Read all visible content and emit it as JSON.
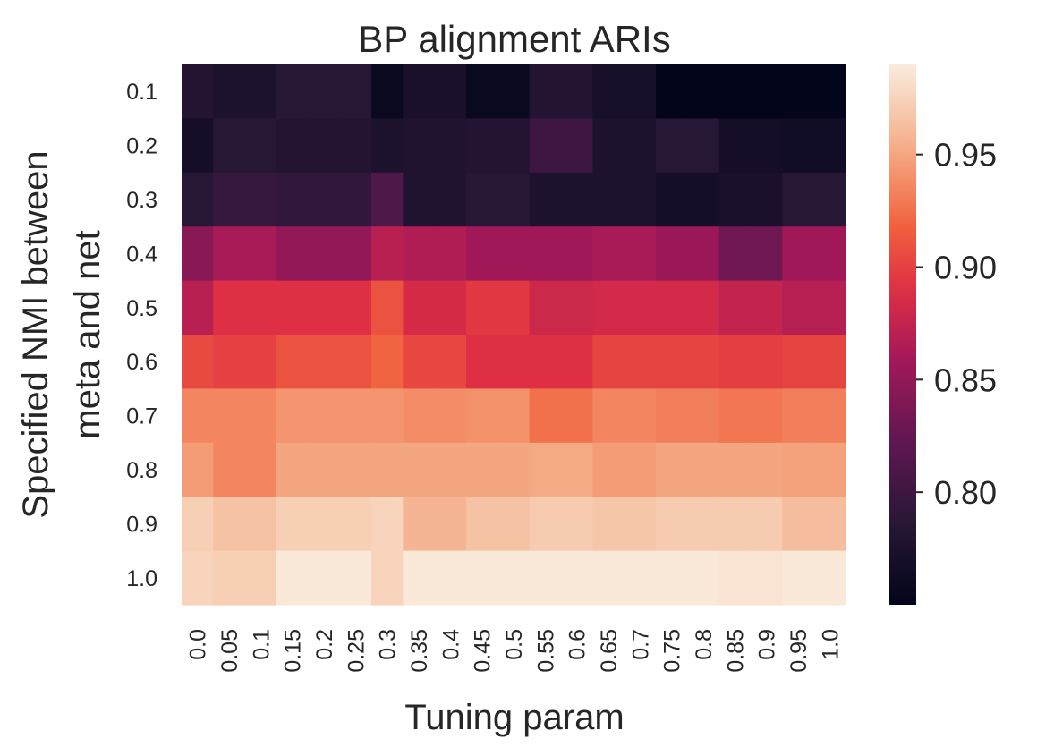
{
  "chart_data": {
    "type": "heatmap",
    "title": "BP alignment ARIs",
    "xlabel": "Tuning param",
    "ylabel_lines": [
      "Specified NMI between",
      "meta and net"
    ],
    "x_categories": [
      "0.0",
      "0.05",
      "0.1",
      "0.15",
      "0.2",
      "0.25",
      "0.3",
      "0.35",
      "0.4",
      "0.45",
      "0.5",
      "0.55",
      "0.6",
      "0.65",
      "0.7",
      "0.75",
      "0.8",
      "0.85",
      "0.9",
      "0.95",
      "1.0"
    ],
    "y_categories": [
      "0.1",
      "0.2",
      "0.3",
      "0.4",
      "0.5",
      "0.6",
      "0.7",
      "0.8",
      "0.9",
      "1.0"
    ],
    "values": [
      [
        0.78,
        0.775,
        0.775,
        0.785,
        0.785,
        0.785,
        0.757,
        0.772,
        0.772,
        0.758,
        0.758,
        0.78,
        0.78,
        0.77,
        0.77,
        0.75,
        0.75,
        0.75,
        0.75,
        0.75,
        0.75
      ],
      [
        0.768,
        0.785,
        0.785,
        0.78,
        0.78,
        0.78,
        0.775,
        0.778,
        0.778,
        0.78,
        0.78,
        0.8,
        0.8,
        0.775,
        0.775,
        0.785,
        0.785,
        0.768,
        0.768,
        0.765,
        0.765
      ],
      [
        0.785,
        0.795,
        0.795,
        0.792,
        0.792,
        0.792,
        0.812,
        0.778,
        0.778,
        0.785,
        0.785,
        0.775,
        0.775,
        0.775,
        0.775,
        0.768,
        0.768,
        0.772,
        0.772,
        0.785,
        0.785
      ],
      [
        0.845,
        0.862,
        0.862,
        0.85,
        0.85,
        0.85,
        0.87,
        0.865,
        0.865,
        0.858,
        0.858,
        0.858,
        0.858,
        0.862,
        0.862,
        0.855,
        0.855,
        0.83,
        0.83,
        0.858,
        0.858
      ],
      [
        0.87,
        0.89,
        0.89,
        0.89,
        0.89,
        0.89,
        0.91,
        0.885,
        0.885,
        0.895,
        0.895,
        0.88,
        0.88,
        0.883,
        0.883,
        0.883,
        0.883,
        0.875,
        0.875,
        0.868,
        0.868
      ],
      [
        0.905,
        0.9,
        0.9,
        0.91,
        0.91,
        0.91,
        0.92,
        0.903,
        0.903,
        0.89,
        0.89,
        0.89,
        0.89,
        0.902,
        0.902,
        0.902,
        0.902,
        0.898,
        0.898,
        0.902,
        0.902
      ],
      [
        0.935,
        0.935,
        0.935,
        0.942,
        0.942,
        0.942,
        0.942,
        0.938,
        0.938,
        0.94,
        0.94,
        0.925,
        0.925,
        0.935,
        0.935,
        0.932,
        0.932,
        0.928,
        0.928,
        0.932,
        0.932
      ],
      [
        0.945,
        0.935,
        0.935,
        0.95,
        0.95,
        0.95,
        0.95,
        0.95,
        0.95,
        0.95,
        0.95,
        0.952,
        0.952,
        0.945,
        0.945,
        0.95,
        0.95,
        0.95,
        0.95,
        0.948,
        0.948
      ],
      [
        0.972,
        0.965,
        0.965,
        0.972,
        0.972,
        0.972,
        0.975,
        0.958,
        0.958,
        0.965,
        0.965,
        0.97,
        0.97,
        0.967,
        0.967,
        0.97,
        0.97,
        0.97,
        0.97,
        0.962,
        0.962
      ],
      [
        0.975,
        0.972,
        0.972,
        0.988,
        0.988,
        0.988,
        0.975,
        0.988,
        0.988,
        0.988,
        0.988,
        0.988,
        0.988,
        0.988,
        0.988,
        0.988,
        0.988,
        0.985,
        0.985,
        0.988,
        0.988
      ]
    ],
    "colorbar": {
      "range": [
        0.75,
        0.99
      ],
      "ticks": [
        "0.80",
        "0.85",
        "0.90",
        "0.95"
      ],
      "colormap": "rocket"
    },
    "grid": false
  }
}
